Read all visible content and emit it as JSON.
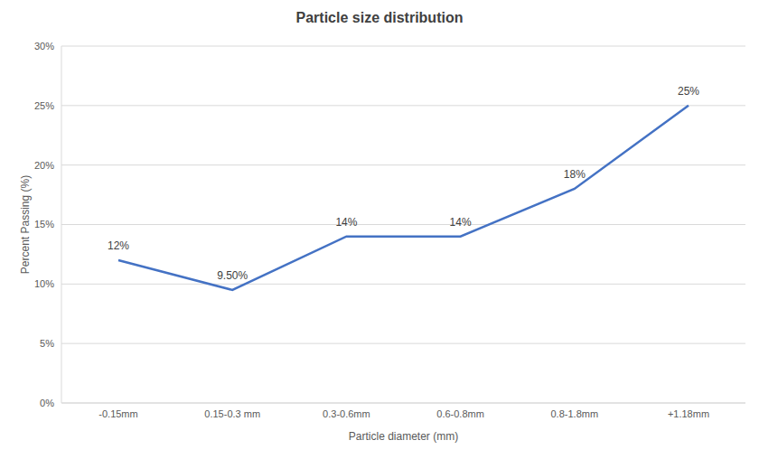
{
  "chart_data": {
    "type": "line",
    "title": "Particle size distribution",
    "x_label": "Particle diameter (mm)",
    "y_label": "Percent Passing (%)",
    "categories": [
      "-0.15mm",
      "0.15-0.3 mm",
      "0.3-0.6mm",
      "0.6-0.8mm",
      "0.8-1.8mm",
      "+1.18mm"
    ],
    "values": [
      12,
      9.5,
      14,
      14,
      18,
      25
    ],
    "value_labels": [
      "12%",
      "9.50%",
      "14%",
      "14%",
      "18%",
      "25%"
    ],
    "color": "#4472c4",
    "ylim": [
      0,
      30
    ],
    "yticks": [
      {
        "value": 0,
        "label": "0%"
      },
      {
        "value": 5,
        "label": "5%"
      },
      {
        "value": 10,
        "label": "10%"
      },
      {
        "value": 15,
        "label": "15%"
      },
      {
        "value": 20,
        "label": "20%"
      },
      {
        "value": 25,
        "label": "25%"
      },
      {
        "value": 30,
        "label": "30%"
      }
    ],
    "grid": true,
    "data_labels": true
  }
}
